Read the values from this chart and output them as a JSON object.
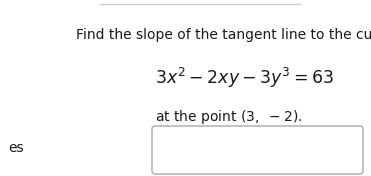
{
  "line1": "Find the slope of the tangent line to the curve",
  "equation": "$3x^2 - 2xy - 3y^3 = 63$",
  "line3": "at the point $(3,\\ -2)$.",
  "bg_color": "#ffffff",
  "text_color": "#1a1a1a",
  "font_size_text": 10.0,
  "font_size_eq": 12.5,
  "left_label": "es",
  "top_border_color": "#cccccc",
  "box_edge_color": "#aaaaaa"
}
